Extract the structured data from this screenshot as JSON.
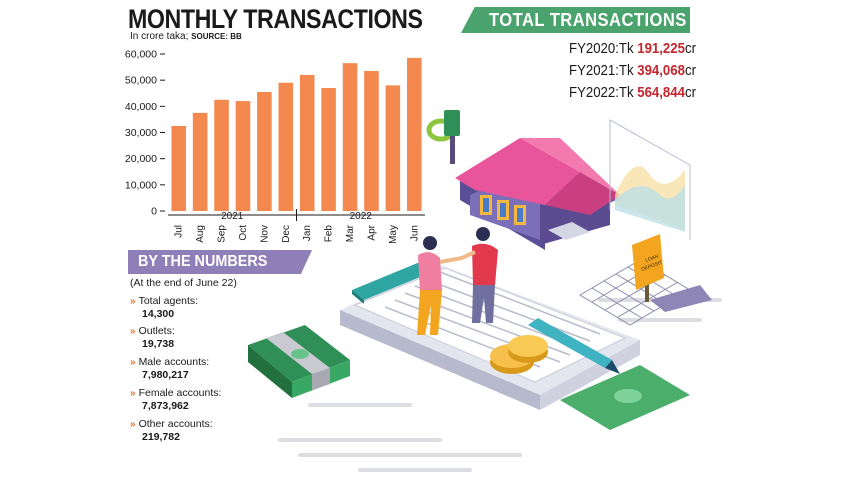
{
  "title": "MONTHLY TRANSACTIONS",
  "subtitle": "In crore taka;",
  "source": "SOURCE: BB",
  "chart_data": {
    "type": "bar",
    "categories": [
      "Jul",
      "Aug",
      "Sep",
      "Oct",
      "Nov",
      "Dec",
      "Jan",
      "Feb",
      "Mar",
      "Apr",
      "May",
      "Jun"
    ],
    "values": [
      32500,
      37500,
      42500,
      42000,
      45500,
      49000,
      52000,
      47000,
      56500,
      53500,
      48000,
      58500
    ],
    "ylim": [
      0,
      60000
    ],
    "yticks": [
      "0",
      "10,000",
      "20,000",
      "30,000",
      "40,000",
      "50,000",
      "60,000"
    ],
    "year_groups": [
      {
        "label": "2021",
        "from": 0,
        "to": 5
      },
      {
        "label": "2022",
        "from": 6,
        "to": 11
      }
    ],
    "bar_color": "#f4894f",
    "grid": false
  },
  "total_transactions": {
    "label": "TOTAL TRANSACTIONS",
    "items": [
      {
        "prefix": "FY2020:Tk ",
        "value": "191,225",
        "suffix": "cr"
      },
      {
        "prefix": "FY2021:Tk ",
        "value": "394,068",
        "suffix": "cr"
      },
      {
        "prefix": "FY2022:Tk ",
        "value": "564,844",
        "suffix": "cr"
      }
    ]
  },
  "by_the_numbers": {
    "label": "BY THE NUMBERS",
    "as_of": "(At the end of June 22)",
    "arrow": "»",
    "items": [
      {
        "label": "Total agents:",
        "value": "14,300"
      },
      {
        "label": "Outlets:",
        "value": "19,738"
      },
      {
        "label": "Male accounts:",
        "value": "7,980,217"
      },
      {
        "label": "Female accounts:",
        "value": "7,873,962"
      },
      {
        "label": "Other accounts:",
        "value": "219,782"
      }
    ]
  },
  "illustration": {
    "sign_text_1": "LOAN",
    "sign_text_2": "DEPOSIT"
  }
}
